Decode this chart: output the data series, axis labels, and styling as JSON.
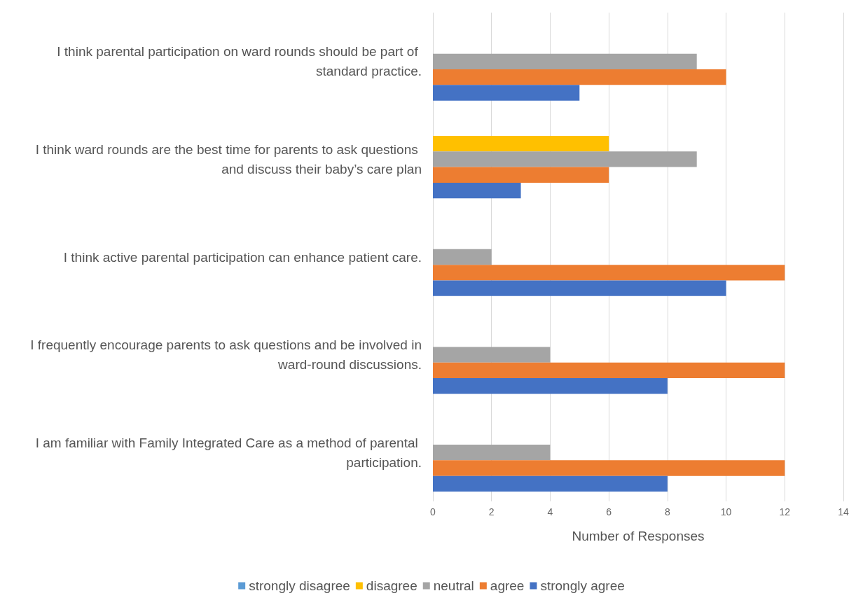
{
  "chart_data": {
    "type": "bar",
    "orientation": "horizontal",
    "xlabel": "Number of Responses",
    "categories": [
      "I think parental participation on ward rounds should be part of standard practice.",
      "I think ward rounds are the best time for parents to ask questions and discuss their baby’s care plan",
      "I think active parental participation can enhance patient care.",
      "I frequently encourage parents to ask questions and be involved in ward-round discussions.",
      "I am familiar with Family Integrated Care as a method of parental participation."
    ],
    "series": [
      {
        "name": "strongly disagree",
        "color": "#5b9bd5",
        "values": [
          null,
          null,
          null,
          null,
          null
        ]
      },
      {
        "name": "disagree",
        "color": "#ffc000",
        "values": [
          null,
          6,
          null,
          null,
          null
        ]
      },
      {
        "name": "neutral",
        "color": "#a5a5a5",
        "values": [
          9,
          9,
          2,
          4,
          4
        ]
      },
      {
        "name": "agree",
        "color": "#ed7d31",
        "values": [
          10,
          6,
          12,
          12,
          12
        ]
      },
      {
        "name": "strongly agree",
        "color": "#4472c4",
        "values": [
          5,
          3,
          10,
          8,
          8
        ]
      }
    ],
    "xlim": [
      0,
      14
    ],
    "xticks": [
      0,
      2,
      4,
      6,
      8,
      10,
      12,
      14
    ],
    "grid": "x",
    "legend": "bottom"
  }
}
